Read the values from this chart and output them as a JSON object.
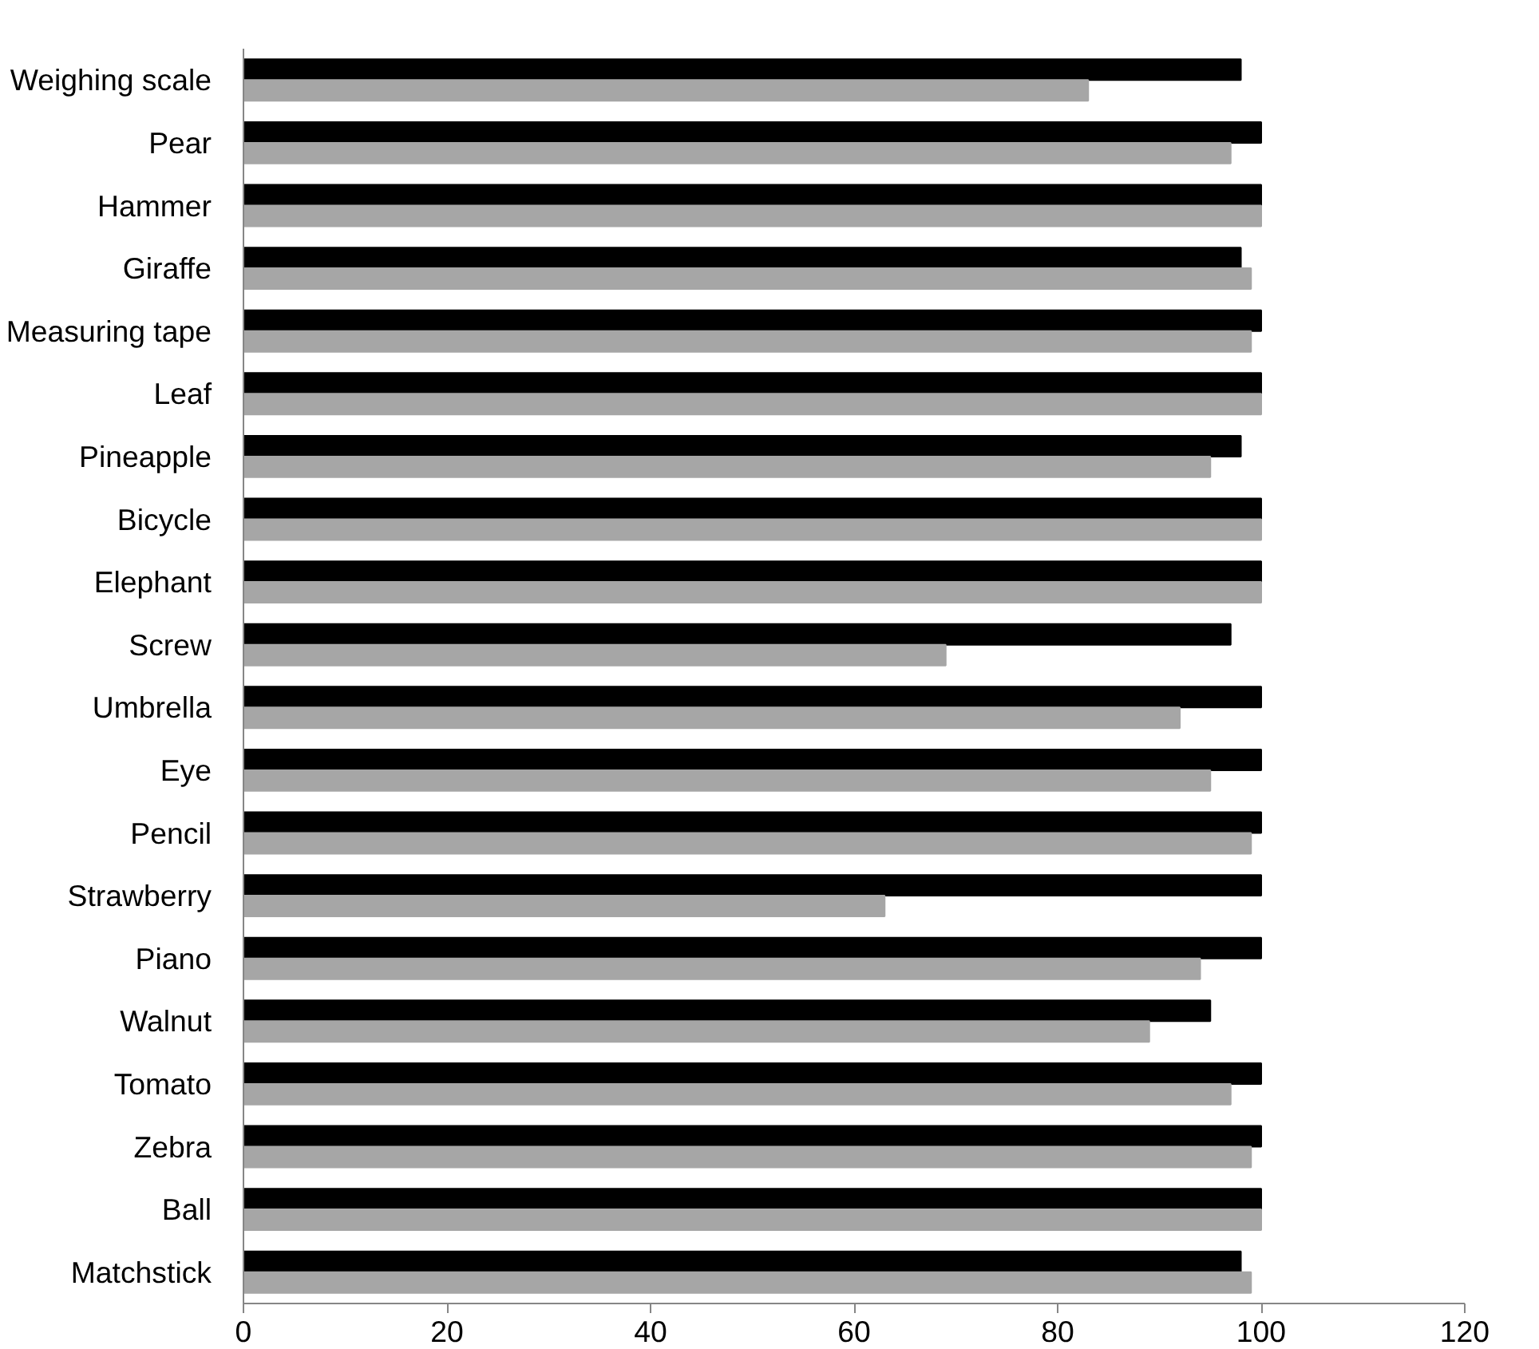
{
  "chart_data": {
    "type": "bar",
    "orientation": "horizontal",
    "categories": [
      "Weighing scale",
      "Pear",
      "Hammer",
      "Giraffe",
      "Measuring tape",
      "Leaf",
      "Pineapple",
      "Bicycle",
      "Elephant",
      "Screw",
      "Umbrella",
      "Eye",
      "Pencil",
      "Strawberry",
      "Piano",
      "Walnut",
      "Tomato",
      "Zebra",
      "Ball",
      "Matchstick"
    ],
    "series": [
      {
        "color": "#000000",
        "values": [
          98,
          100,
          100,
          98,
          100,
          100,
          98,
          100,
          100,
          97,
          100,
          100,
          100,
          100,
          100,
          95,
          100,
          100,
          100,
          98
        ]
      },
      {
        "color": "#a6a6a6",
        "values": [
          83,
          97,
          100,
          99,
          99,
          100,
          95,
          100,
          100,
          69,
          92,
          95,
          99,
          63,
          94,
          89,
          97,
          99,
          100,
          99
        ]
      }
    ],
    "xlim": [
      0,
      120
    ],
    "xticks": [
      0,
      20,
      40,
      60,
      80,
      100,
      120
    ],
    "grid": false
  }
}
